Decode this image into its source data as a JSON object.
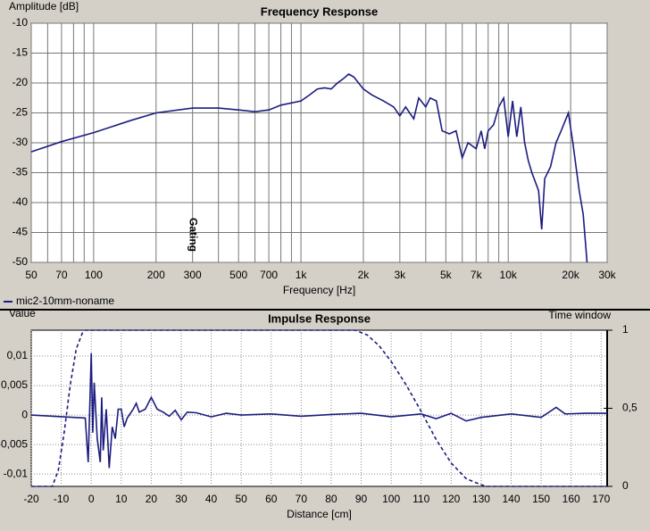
{
  "chart_data": [
    {
      "type": "line",
      "title": "Frequency Response",
      "ylabel": "Amplitude [dB]",
      "xlabel": "Frequency [Hz]",
      "xscale": "log",
      "xlim": [
        50,
        30000
      ],
      "ylim": [
        -50,
        -10
      ],
      "xticks": [
        50,
        70,
        100,
        200,
        300,
        500,
        700,
        {
          "value": 1000,
          "label": "1k"
        },
        {
          "value": 2000,
          "label": "2k"
        },
        {
          "value": 3000,
          "label": "3k"
        },
        {
          "value": 5000,
          "label": "5k"
        },
        {
          "value": 7000,
          "label": "7k"
        },
        {
          "value": 10000,
          "label": "10k"
        },
        {
          "value": 20000,
          "label": "20k"
        },
        {
          "value": 30000,
          "label": "30k"
        }
      ],
      "xminorticks": [
        60,
        80,
        90,
        400,
        600,
        800,
        900,
        4000,
        6000,
        8000,
        9000
      ],
      "yticks": [
        -10,
        -15,
        -20,
        -25,
        -30,
        -35,
        -40,
        -45,
        -50
      ],
      "grid": true,
      "annotations": [
        {
          "text": "Gating",
          "x": 300
        }
      ],
      "series": [
        {
          "name": "mic2-10mm-noname",
          "color": "#1c1c80",
          "x": [
            50,
            70,
            100,
            150,
            200,
            300,
            400,
            500,
            600,
            700,
            800,
            1000,
            1100,
            1200,
            1300,
            1400,
            1500,
            1600,
            1700,
            1800,
            2000,
            2200,
            2500,
            2800,
            3000,
            3200,
            3500,
            3700,
            4000,
            4200,
            4500,
            4800,
            5200,
            5600,
            6000,
            6400,
            7000,
            7400,
            7700,
            8000,
            8500,
            9000,
            9500,
            10000,
            10500,
            11000,
            11500,
            12000,
            12500,
            13000,
            14000,
            14500,
            15000,
            16000,
            17000,
            18000,
            19500,
            20500,
            22000,
            23000,
            24000
          ],
          "values": [
            -31.5,
            -29.8,
            -28.3,
            -26.3,
            -25,
            -24.2,
            -24.2,
            -24.5,
            -24.8,
            -24.5,
            -23.7,
            -23,
            -22,
            -21,
            -20.8,
            -21,
            -20,
            -19.3,
            -18.5,
            -19,
            -21,
            -22,
            -23,
            -24,
            -25.5,
            -24,
            -26,
            -22.5,
            -24,
            -22.5,
            -23,
            -28,
            -28.5,
            -28,
            -32.5,
            -30,
            -31,
            -28,
            -31,
            -28,
            -27,
            -24,
            -22.5,
            -29,
            -23,
            -29,
            -24,
            -30,
            -33,
            -35,
            -38,
            -44.5,
            -36,
            -34,
            -30,
            -28,
            -25,
            -30,
            -38,
            -42,
            -50
          ]
        }
      ]
    },
    {
      "type": "line",
      "title": "Impulse Response",
      "ylabel": "Value",
      "y2label": "Time window",
      "xlabel": "Distance [cm]",
      "xlim": [
        -20,
        172
      ],
      "ylim": [
        -0.0121,
        0.0144
      ],
      "y2lim": [
        0,
        1
      ],
      "xticks": [
        -20,
        -10,
        0,
        10,
        20,
        30,
        40,
        50,
        60,
        70,
        80,
        90,
        100,
        110,
        120,
        130,
        140,
        150,
        160,
        170
      ],
      "yticks": [
        {
          "value": -0.01,
          "label": "-0,01"
        },
        {
          "value": -0.005,
          "label": "-0,005"
        },
        0,
        {
          "value": 0.005,
          "label": "0,005"
        },
        {
          "value": 0.01,
          "label": "0,01"
        }
      ],
      "y2ticks": [
        0,
        {
          "value": 0.5,
          "label": "0,5"
        },
        1
      ],
      "grid": true,
      "series": [
        {
          "color": "#1c1c80",
          "x": [
            -20,
            -2,
            -1,
            0,
            0.5,
            1,
            2,
            3,
            3.5,
            4,
            5,
            6,
            7,
            8,
            9,
            10,
            11,
            12,
            14,
            15,
            16,
            18,
            20,
            22,
            24,
            26,
            28,
            30,
            32,
            35,
            40,
            45,
            50,
            60,
            70,
            80,
            90,
            100,
            110,
            115,
            120,
            125,
            130,
            140,
            150,
            155,
            158,
            165,
            172
          ],
          "values": [
            0,
            -0.0005,
            -0.008,
            0.0105,
            -0.003,
            0.0055,
            -0.004,
            -0.008,
            0.003,
            -0.006,
            0.001,
            -0.009,
            -0.002,
            -0.004,
            0.001,
            0.001,
            -0.002,
            -0.0005,
            0.001,
            0.002,
            0.0005,
            0.001,
            0.003,
            0.001,
            0.0005,
            -0.0002,
            0.0008,
            -0.0008,
            0.0005,
            0.0004,
            -0.0003,
            0.0003,
            0,
            0.0002,
            -0.0002,
            0.0001,
            0.0003,
            -0.0003,
            0.0002,
            -0.0006,
            0.0003,
            -0.001,
            -0.0004,
            0.0002,
            -0.0004,
            0.0013,
            0.0002,
            0.0003,
            0.0003
          ]
        },
        {
          "color": "#1c1c80",
          "dashed": true,
          "axis": "y2",
          "x": [
            -20,
            -13,
            -11,
            -9,
            -7,
            -5,
            -3,
            -2,
            88,
            92,
            96,
            100,
            105,
            110,
            115,
            120,
            125,
            130,
            132,
            172
          ],
          "values": [
            0,
            0,
            0.1,
            0.35,
            0.65,
            0.88,
            0.98,
            1,
            1,
            0.97,
            0.9,
            0.8,
            0.65,
            0.48,
            0.3,
            0.15,
            0.05,
            0.01,
            0,
            0
          ]
        }
      ]
    }
  ]
}
